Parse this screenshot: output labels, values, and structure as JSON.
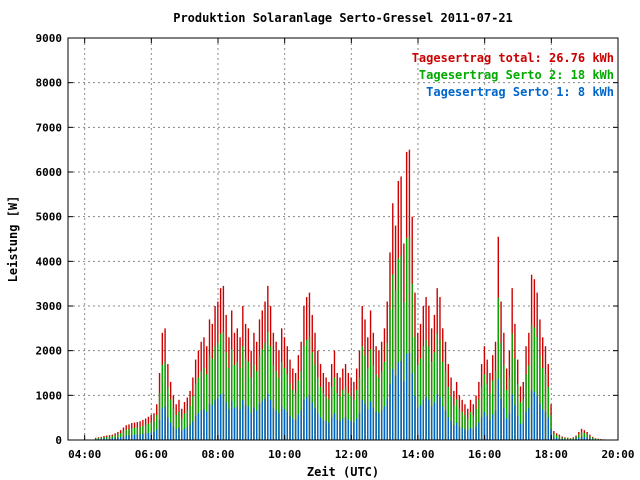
{
  "chart_data": {
    "type": "bar",
    "title": "Produktion Solaranlage Serto-Gressel 2011-07-21",
    "xlabel": "Zeit (UTC)",
    "ylabel": "Leistung [W]",
    "xlim": [
      3.5,
      20.0
    ],
    "ylim": [
      0,
      9000
    ],
    "x_ticks": [
      "04:00",
      "06:00",
      "08:00",
      "10:00",
      "12:00",
      "14:00",
      "16:00",
      "18:00",
      "20:00"
    ],
    "x_tick_values": [
      4,
      6,
      8,
      10,
      12,
      14,
      16,
      18,
      20
    ],
    "y_ticks": [
      "0",
      "1000",
      "2000",
      "3000",
      "4000",
      "5000",
      "6000",
      "7000",
      "8000",
      "9000"
    ],
    "y_tick_values": [
      0,
      1000,
      2000,
      3000,
      4000,
      5000,
      6000,
      7000,
      8000,
      9000
    ],
    "grid": true,
    "legend_position": "top-right",
    "legend": [
      {
        "text": "Tagesertrag total: 26.76 kWh",
        "color": "#cc0000"
      },
      {
        "text": "Tagesertrag Serto 2: 18 kWh",
        "color": "#00aa00"
      },
      {
        "text": "Tagesertrag Serto 1: 8 kWh",
        "color": "#0066cc"
      }
    ],
    "series_colors": {
      "total": "#cc0000",
      "serto2": "#00aa00",
      "serto1": "#0066cc"
    },
    "x_step_hours": 0.0833,
    "x_start_hours": 4.33,
    "series": [
      {
        "name": "Tagesertrag total",
        "values": [
          50,
          60,
          70,
          90,
          100,
          110,
          120,
          150,
          180,
          220,
          280,
          330,
          350,
          380,
          390,
          400,
          420,
          450,
          480,
          520,
          560,
          600,
          800,
          1500,
          2400,
          2500,
          1700,
          1300,
          1000,
          800,
          900,
          700,
          850,
          950,
          1100,
          1400,
          1800,
          2000,
          2200,
          2300,
          2100,
          2700,
          2600,
          3000,
          3100,
          3400,
          3450,
          2800,
          2300,
          2900,
          2400,
          2500,
          2300,
          3000,
          2600,
          2500,
          2000,
          2400,
          2200,
          2700,
          2900,
          3100,
          3450,
          3000,
          2400,
          2200,
          2000,
          2500,
          2300,
          2100,
          1800,
          1600,
          1500,
          1900,
          2200,
          3000,
          3200,
          3300,
          2800,
          2400,
          2000,
          1700,
          1500,
          1400,
          1300,
          1700,
          2000,
          1500,
          1400,
          1600,
          1700,
          1500,
          1400,
          1300,
          1600,
          2000,
          3000,
          2700,
          2300,
          2900,
          2400,
          2100,
          2000,
          2200,
          2500,
          3100,
          4200,
          5300,
          4800,
          5800,
          5900,
          4400,
          6450,
          6500,
          5000,
          3300,
          2400,
          2600,
          3000,
          3200,
          3000,
          2500,
          2800,
          3400,
          3200,
          2500,
          2200,
          1700,
          1400,
          1100,
          1300,
          1000,
          900,
          800,
          700,
          900,
          800,
          1000,
          1300,
          1700,
          2100,
          1800,
          1500,
          1900,
          2200,
          4550,
          3100,
          2400,
          1600,
          2000,
          3400,
          2600,
          1800,
          1200,
          1300,
          2100,
          2400,
          3700,
          3600,
          3300,
          2700,
          2300,
          2100,
          1700,
          800,
          200,
          150,
          120,
          80,
          60,
          50,
          40,
          60,
          100,
          180,
          250,
          220,
          180,
          120,
          70,
          40,
          30,
          20,
          15,
          10
        ]
      },
      {
        "name": "Tagesertrag Serto 2",
        "values": [
          35,
          42,
          50,
          62,
          70,
          77,
          84,
          105,
          126,
          154,
          196,
          231,
          245,
          266,
          273,
          280,
          294,
          315,
          336,
          364,
          392,
          420,
          560,
          1050,
          1680,
          1750,
          1190,
          910,
          700,
          560,
          630,
          490,
          595,
          665,
          770,
          980,
          1260,
          1400,
          1540,
          1610,
          1470,
          1890,
          1820,
          2100,
          2170,
          2380,
          2415,
          1960,
          1610,
          2030,
          1680,
          1750,
          1610,
          2100,
          1820,
          1750,
          1400,
          1680,
          1540,
          1890,
          2030,
          2170,
          2415,
          2100,
          1680,
          1540,
          1400,
          1750,
          1610,
          1470,
          1260,
          1120,
          1050,
          1330,
          1540,
          2100,
          2240,
          2310,
          1960,
          1680,
          1400,
          1190,
          1050,
          980,
          910,
          1190,
          1400,
          1050,
          980,
          1120,
          1190,
          1050,
          980,
          910,
          1120,
          1400,
          2100,
          1890,
          1610,
          2030,
          1680,
          1470,
          1400,
          1540,
          1750,
          2170,
          2940,
          3710,
          3360,
          4060,
          4130,
          3080,
          4515,
          4550,
          3500,
          2310,
          1680,
          1820,
          2100,
          2240,
          2100,
          1750,
          1960,
          2380,
          2240,
          1750,
          1540,
          1190,
          980,
          770,
          910,
          700,
          630,
          560,
          490,
          630,
          560,
          700,
          910,
          1190,
          1470,
          1260,
          1050,
          1330,
          1540,
          3185,
          2170,
          1680,
          1120,
          1400,
          2380,
          1820,
          1260,
          840,
          910,
          1470,
          1680,
          2590,
          2520,
          2310,
          1890,
          1610,
          1470,
          1190,
          560,
          140,
          105,
          84,
          56,
          42,
          35,
          28,
          42,
          70,
          126,
          175,
          154,
          126,
          84,
          49,
          28,
          21,
          14,
          10,
          7
        ]
      },
      {
        "name": "Tagesertrag Serto 1",
        "values": [
          15,
          18,
          21,
          27,
          30,
          33,
          36,
          45,
          54,
          66,
          84,
          99,
          105,
          114,
          117,
          120,
          126,
          135,
          144,
          156,
          168,
          180,
          240,
          450,
          720,
          750,
          510,
          390,
          300,
          240,
          270,
          210,
          255,
          285,
          330,
          420,
          540,
          600,
          660,
          690,
          630,
          810,
          780,
          900,
          930,
          1020,
          1035,
          840,
          690,
          870,
          720,
          750,
          690,
          900,
          780,
          750,
          600,
          720,
          660,
          810,
          870,
          930,
          1035,
          900,
          720,
          660,
          600,
          750,
          690,
          630,
          540,
          480,
          450,
          570,
          660,
          900,
          960,
          990,
          840,
          720,
          600,
          510,
          450,
          420,
          390,
          510,
          600,
          450,
          420,
          480,
          510,
          450,
          420,
          390,
          480,
          600,
          900,
          810,
          690,
          870,
          720,
          630,
          600,
          660,
          750,
          930,
          1260,
          1590,
          1440,
          1740,
          1770,
          1320,
          1935,
          1950,
          1500,
          990,
          720,
          780,
          900,
          960,
          900,
          750,
          840,
          1020,
          960,
          750,
          660,
          510,
          420,
          330,
          390,
          300,
          270,
          240,
          210,
          270,
          240,
          300,
          390,
          510,
          630,
          540,
          450,
          570,
          660,
          1365,
          930,
          720,
          480,
          600,
          1020,
          780,
          540,
          360,
          390,
          630,
          720,
          1110,
          1080,
          990,
          810,
          690,
          630,
          510,
          240,
          60,
          45,
          36,
          24,
          18,
          15,
          12,
          18,
          30,
          54,
          75,
          66,
          54,
          36,
          21,
          12,
          9,
          6,
          5,
          3
        ]
      }
    ]
  }
}
